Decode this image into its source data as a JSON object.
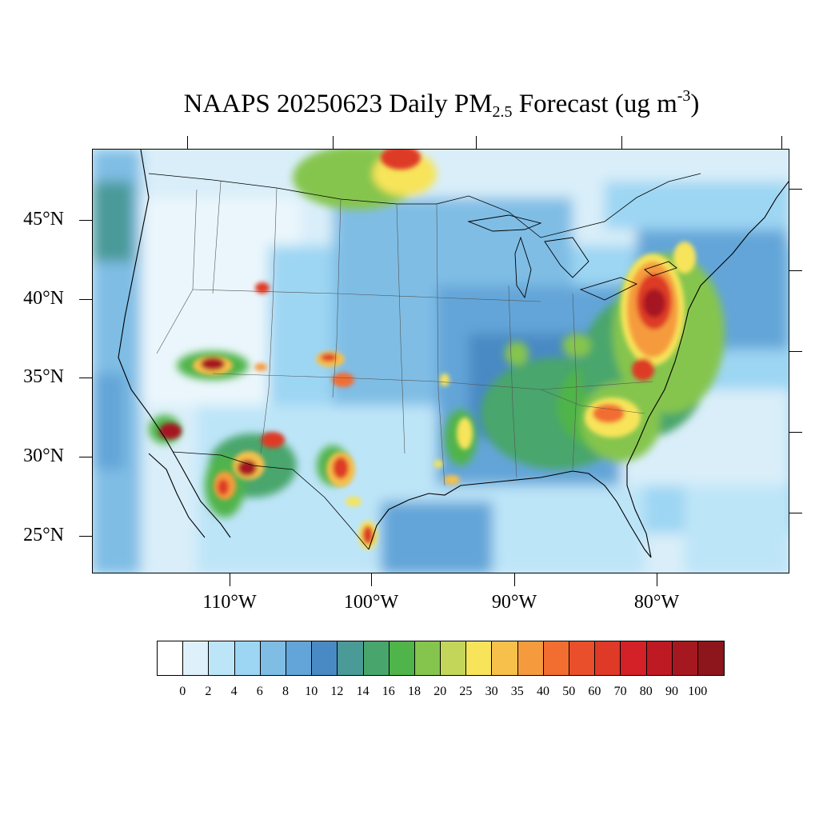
{
  "title": {
    "prefix": "NAAPS 20250623 Daily PM",
    "subscript": "2.5",
    "middle": " Forecast (ug m",
    "superscript": "-3",
    "suffix": ")"
  },
  "map": {
    "projection": "Lambert conformal (CONUS)",
    "lat_labels": [
      "45°N",
      "40°N",
      "35°N",
      "30°N",
      "25°N"
    ],
    "lon_labels": [
      "110°W",
      "100°W",
      "90°W",
      "80°W"
    ],
    "background_value_color": "#d9eef9"
  },
  "colorbar": {
    "colors": [
      "#ffffff",
      "#def1fa",
      "#bde5f8",
      "#9dd6f3",
      "#7fbde5",
      "#63a5d8",
      "#4a8ac4",
      "#4a9a98",
      "#48a66c",
      "#4fb44a",
      "#85c54e",
      "#c3d65a",
      "#f7e45a",
      "#f7c04b",
      "#f59b3e",
      "#f26d30",
      "#e94f2b",
      "#de3a27",
      "#d42027",
      "#be1a24",
      "#a61820",
      "#8c161b"
    ],
    "labels": [
      "0",
      "2",
      "4",
      "6",
      "8",
      "10",
      "12",
      "14",
      "16",
      "18",
      "20",
      "25",
      "30",
      "35",
      "40",
      "50",
      "60",
      "70",
      "80",
      "90",
      "100"
    ]
  }
}
